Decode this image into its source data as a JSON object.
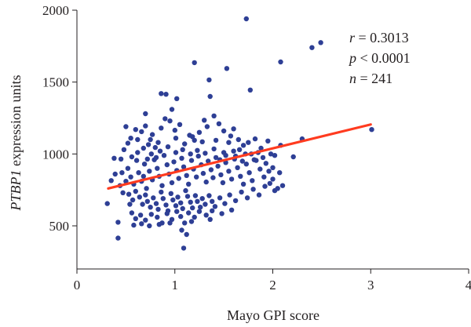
{
  "chart_data": {
    "type": "scatter",
    "title": "",
    "xlabel": "Mayo GPI score",
    "ylabel": {
      "italic": "PTBP1",
      "rest": " expression units"
    },
    "xlim": [
      0,
      4
    ],
    "ylim": [
      200,
      2000
    ],
    "xticks": [
      "0",
      "1",
      "2",
      "3",
      "4"
    ],
    "yticks": [
      "500",
      "1000",
      "1500",
      "2000"
    ],
    "grid": false,
    "point_color": "#2e3f95",
    "line_color": "#ff3b1f",
    "annotation": {
      "r_sym": "r",
      "r_val": " = 0.3013",
      "p_sym": "p",
      "p_val": " < 0.0001",
      "n_sym": "n",
      "n_val": " = 241"
    },
    "regression": {
      "x": [
        0.32,
        3.0
      ],
      "y": [
        760,
        1205
      ]
    },
    "points": [
      [
        1.73,
        1940
      ],
      [
        2.49,
        1775
      ],
      [
        2.4,
        1740
      ],
      [
        2.08,
        1640
      ],
      [
        1.2,
        1635
      ],
      [
        1.53,
        1595
      ],
      [
        1.77,
        1445
      ],
      [
        1.35,
        1515
      ],
      [
        0.86,
        1420
      ],
      [
        0.91,
        1415
      ],
      [
        0.97,
        1310
      ],
      [
        1.02,
        1385
      ],
      [
        1.36,
        1400
      ],
      [
        3.01,
        1170
      ],
      [
        2.3,
        1105
      ],
      [
        2.21,
        980
      ],
      [
        0.38,
        970
      ],
      [
        0.45,
        965
      ],
      [
        0.31,
        655
      ],
      [
        0.42,
        525
      ],
      [
        0.42,
        415
      ],
      [
        1.09,
        345
      ],
      [
        1.1,
        520
      ],
      [
        1.12,
        440
      ],
      [
        1.07,
        470
      ],
      [
        0.5,
        1190
      ],
      [
        0.55,
        1110
      ],
      [
        0.52,
        1075
      ],
      [
        0.48,
        1030
      ],
      [
        0.56,
        980
      ],
      [
        0.6,
        1170
      ],
      [
        0.62,
        1100
      ],
      [
        0.66,
        1155
      ],
      [
        0.7,
        1195
      ],
      [
        0.73,
        1065
      ],
      [
        0.77,
        1135
      ],
      [
        0.8,
        1045
      ],
      [
        0.86,
        1180
      ],
      [
        0.9,
        1245
      ],
      [
        0.95,
        1230
      ],
      [
        1.0,
        1165
      ],
      [
        1.05,
        1205
      ],
      [
        1.1,
        1070
      ],
      [
        1.15,
        1130
      ],
      [
        1.2,
        1095
      ],
      [
        1.25,
        1150
      ],
      [
        1.3,
        1235
      ],
      [
        1.33,
        1190
      ],
      [
        1.4,
        1265
      ],
      [
        1.45,
        1210
      ],
      [
        1.5,
        1160
      ],
      [
        1.57,
        1125
      ],
      [
        1.6,
        1175
      ],
      [
        1.65,
        1100
      ],
      [
        1.7,
        1060
      ],
      [
        1.75,
        1080
      ],
      [
        1.82,
        1105
      ],
      [
        1.88,
        1040
      ],
      [
        1.95,
        1090
      ],
      [
        2.02,
        990
      ],
      [
        2.08,
        1060
      ],
      [
        0.52,
        900
      ],
      [
        0.55,
        840
      ],
      [
        0.58,
        790
      ],
      [
        0.61,
        955
      ],
      [
        0.63,
        870
      ],
      [
        0.66,
        810
      ],
      [
        0.69,
        930
      ],
      [
        0.71,
        760
      ],
      [
        0.74,
        880
      ],
      [
        0.77,
        820
      ],
      [
        0.79,
        960
      ],
      [
        0.82,
        900
      ],
      [
        0.84,
        845
      ],
      [
        0.87,
        780
      ],
      [
        0.89,
        990
      ],
      [
        0.92,
        925
      ],
      [
        0.94,
        860
      ],
      [
        0.97,
        800
      ],
      [
        0.99,
        945
      ],
      [
        1.02,
        885
      ],
      [
        1.04,
        830
      ],
      [
        1.07,
        970
      ],
      [
        1.09,
        910
      ],
      [
        1.12,
        850
      ],
      [
        1.14,
        790
      ],
      [
        1.17,
        955
      ],
      [
        1.19,
        895
      ],
      [
        1.22,
        840
      ],
      [
        1.24,
        985
      ],
      [
        1.27,
        925
      ],
      [
        1.29,
        865
      ],
      [
        1.32,
        805
      ],
      [
        1.34,
        950
      ],
      [
        1.37,
        890
      ],
      [
        1.39,
        835
      ],
      [
        1.42,
        975
      ],
      [
        1.44,
        915
      ],
      [
        1.47,
        855
      ],
      [
        1.49,
        800
      ],
      [
        1.52,
        940
      ],
      [
        1.55,
        880
      ],
      [
        1.58,
        825
      ],
      [
        1.61,
        965
      ],
      [
        1.64,
        905
      ],
      [
        1.67,
        845
      ],
      [
        1.7,
        790
      ],
      [
        1.73,
        930
      ],
      [
        1.76,
        870
      ],
      [
        1.79,
        815
      ],
      [
        1.83,
        955
      ],
      [
        1.87,
        895
      ],
      [
        1.91,
        840
      ],
      [
        1.96,
        880
      ],
      [
        2.0,
        825
      ],
      [
        0.53,
        720
      ],
      [
        0.57,
        680
      ],
      [
        0.6,
        740
      ],
      [
        0.64,
        700
      ],
      [
        0.67,
        650
      ],
      [
        0.7,
        715
      ],
      [
        0.72,
        670
      ],
      [
        0.75,
        630
      ],
      [
        0.78,
        695
      ],
      [
        0.81,
        655
      ],
      [
        0.83,
        615
      ],
      [
        0.86,
        735
      ],
      [
        0.88,
        690
      ],
      [
        0.91,
        645
      ],
      [
        0.93,
        605
      ],
      [
        0.96,
        725
      ],
      [
        0.98,
        680
      ],
      [
        1.01,
        640
      ],
      [
        1.03,
        700
      ],
      [
        1.06,
        660
      ],
      [
        1.08,
        620
      ],
      [
        1.11,
        745
      ],
      [
        1.13,
        705
      ],
      [
        1.16,
        665
      ],
      [
        1.18,
        625
      ],
      [
        1.21,
        710
      ],
      [
        1.23,
        670
      ],
      [
        1.26,
        630
      ],
      [
        1.28,
        690
      ],
      [
        1.31,
        650
      ],
      [
        1.35,
        710
      ],
      [
        1.38,
        670
      ],
      [
        1.41,
        635
      ],
      [
        1.46,
        695
      ],
      [
        1.51,
        655
      ],
      [
        1.56,
        715
      ],
      [
        1.62,
        675
      ],
      [
        1.68,
        735
      ],
      [
        1.74,
        695
      ],
      [
        1.8,
        755
      ],
      [
        1.86,
        715
      ],
      [
        1.92,
        775
      ],
      [
        2.05,
        760
      ],
      [
        2.1,
        780
      ],
      [
        2.02,
        745
      ],
      [
        0.56,
        590
      ],
      [
        0.6,
        550
      ],
      [
        0.65,
        575
      ],
      [
        0.7,
        540
      ],
      [
        0.76,
        580
      ],
      [
        0.82,
        560
      ],
      [
        0.87,
        520
      ],
      [
        0.92,
        585
      ],
      [
        0.97,
        545
      ],
      [
        1.02,
        600
      ],
      [
        1.06,
        565
      ],
      [
        1.14,
        590
      ],
      [
        1.2,
        560
      ],
      [
        1.25,
        600
      ],
      [
        1.32,
        575
      ],
      [
        1.38,
        605
      ],
      [
        1.48,
        585
      ],
      [
        1.58,
        610
      ],
      [
        0.58,
        505
      ],
      [
        0.66,
        515
      ],
      [
        0.74,
        500
      ],
      [
        0.84,
        510
      ],
      [
        0.95,
        520
      ],
      [
        1.17,
        530
      ],
      [
        1.36,
        545
      ],
      [
        0.35,
        815
      ],
      [
        0.39,
        860
      ],
      [
        0.44,
        780
      ],
      [
        0.47,
        730
      ],
      [
        0.5,
        810
      ],
      [
        0.46,
        870
      ],
      [
        0.54,
        650
      ],
      [
        0.62,
        1010
      ],
      [
        0.68,
        1040
      ],
      [
        0.76,
        1000
      ],
      [
        0.85,
        1020
      ],
      [
        0.93,
        1050
      ],
      [
        1.01,
        1010
      ],
      [
        1.08,
        1030
      ],
      [
        1.16,
        1000
      ],
      [
        1.23,
        1025
      ],
      [
        1.31,
        1005
      ],
      [
        1.4,
        1035
      ],
      [
        1.5,
        1010
      ],
      [
        1.6,
        1020
      ],
      [
        1.72,
        1000
      ],
      [
        1.85,
        1010
      ],
      [
        1.98,
        1000
      ],
      [
        0.75,
        1100
      ],
      [
        0.83,
        1080
      ],
      [
        1.01,
        1110
      ],
      [
        1.18,
        1120
      ],
      [
        1.28,
        1085
      ],
      [
        1.42,
        1095
      ],
      [
        1.55,
        1080
      ],
      [
        1.66,
        1030
      ],
      [
        1.78,
        1000
      ],
      [
        1.9,
        975
      ],
      [
        0.72,
        965
      ],
      [
        0.81,
        975
      ],
      [
        1.46,
        960
      ],
      [
        1.52,
        990
      ],
      [
        1.62,
        985
      ],
      [
        1.69,
        950
      ],
      [
        1.81,
        960
      ],
      [
        1.93,
        935
      ],
      [
        2.0,
        905
      ],
      [
        1.97,
        795
      ],
      [
        2.07,
        870
      ],
      [
        0.7,
        1280
      ],
      [
        0.68,
        845
      ]
    ]
  }
}
